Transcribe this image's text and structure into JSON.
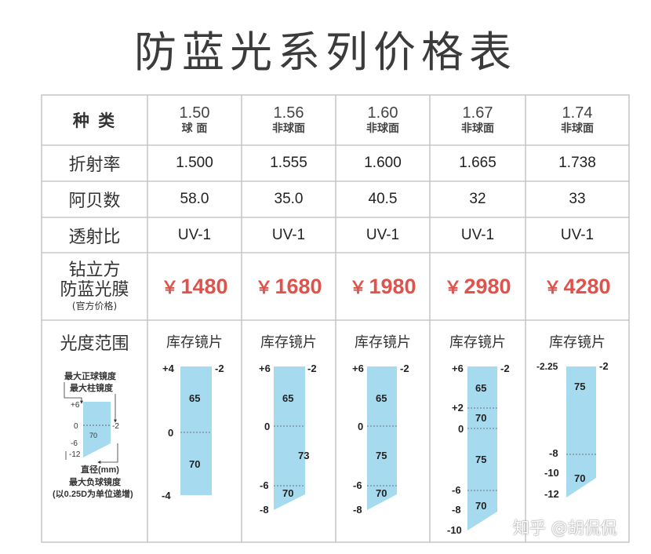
{
  "title": "防蓝光系列价格表",
  "header": {
    "label": "种 类",
    "columns": [
      {
        "index": "1.50",
        "type": "球 面"
      },
      {
        "index": "1.56",
        "type": "非球面"
      },
      {
        "index": "1.60",
        "type": "非球面"
      },
      {
        "index": "1.67",
        "type": "非球面"
      },
      {
        "index": "1.74",
        "type": "非球面"
      }
    ]
  },
  "rows": {
    "refractive": {
      "label": "折射率",
      "values": [
        "1.500",
        "1.555",
        "1.600",
        "1.665",
        "1.738"
      ]
    },
    "abbe": {
      "label": "阿贝数",
      "values": [
        "58.0",
        "35.0",
        "40.5",
        "32",
        "33"
      ]
    },
    "transmission": {
      "label": "透射比",
      "values": [
        "UV-1",
        "UV-1",
        "UV-1",
        "UV-1",
        "UV-1"
      ]
    },
    "price": {
      "label_line1": "钻立方",
      "label_line2": "防蓝光膜",
      "label_note": "(官方价格)",
      "currency": "￥",
      "values": [
        "1480",
        "1680",
        "1980",
        "2980",
        "4280"
      ]
    },
    "power_range": {
      "label": "光度范围",
      "stock_label": "库存镜片"
    }
  },
  "legend": {
    "max_sph": "最大正球镜度",
    "max_cyl": "最大柱镜度",
    "p6": "+6",
    "zero": "0",
    "m2": "-2",
    "m6": "-6",
    "m12": "-12",
    "n70": "70",
    "diameter": "直径(mm)",
    "max_neg": "最大负球镜度",
    "step_note": "(以0.25D为单位递增)"
  },
  "diagrams": [
    {
      "top": "+4",
      "cyl": "-2",
      "mid": "0",
      "bottom": "-4",
      "n_upper": "65",
      "n_lower": "70"
    },
    {
      "top": "+6",
      "cyl": "-2",
      "mid": "0",
      "m6": "-6",
      "bottom": "-8",
      "n_upper": "65",
      "n_right": "73",
      "n_lower": "70"
    },
    {
      "top": "+6",
      "cyl": "-2",
      "mid": "0",
      "m6": "-6",
      "bottom": "-8",
      "n_upper": "65",
      "n_mid": "75",
      "n_lower": "70"
    },
    {
      "top": "+6",
      "cyl": "-2",
      "p2": "+2",
      "mid": "0",
      "m6": "-6",
      "m8": "-8",
      "bottom": "-10",
      "n_top": "65",
      "n_2": "70",
      "n_3": "75",
      "n_4": "70"
    },
    {
      "top": "-2.25",
      "cyl": "-2",
      "m8": "-8",
      "m10": "-10",
      "bottom": "-12",
      "n_upper": "75",
      "n_lower": "70"
    }
  ],
  "colors": {
    "price": "#e0524c",
    "lens": "#a6dbef",
    "border": "#bdbdbd"
  },
  "watermark": "知乎 @胡侃侃"
}
